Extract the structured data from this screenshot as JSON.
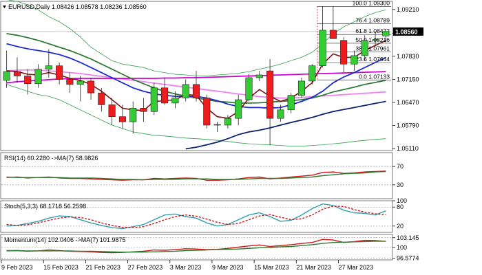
{
  "chart_data": [
    {
      "type": "candlestick",
      "title": "EURUSD,Daily",
      "ohlc_text": "1.08426 1.08578 1.08236 1.08560",
      "last_price": "1.08560",
      "y_ticks": [
        1.0511,
        1.0579,
        1.0647,
        1.0715,
        1.0783,
        1.0851,
        1.0921
      ],
      "y_tick_labels": [
        "1.05110",
        "1.05790",
        "1.06470",
        "1.07150",
        "1.07830",
        "",
        "1.09210"
      ],
      "ylim": [
        1.0505,
        1.0945
      ],
      "x_labels": [
        "9 Feb 2023",
        "15 Feb 2023",
        "21 Feb 2023",
        "27 Feb 2023",
        "3 Mar 2023",
        "9 Mar 2023",
        "15 Mar 2023",
        "21 Mar 2023",
        "27 Mar 2023"
      ],
      "x_label_bars": [
        0,
        4,
        8,
        12,
        16,
        20,
        24,
        28,
        32
      ],
      "candles": [
        {
          "o": 1.0712,
          "h": 1.08,
          "l": 1.069,
          "c": 1.0738
        },
        {
          "o": 1.0738,
          "h": 1.078,
          "l": 1.0705,
          "c": 1.0725
        },
        {
          "o": 1.0725,
          "h": 1.0745,
          "l": 1.067,
          "c": 1.0702
        },
        {
          "o": 1.0702,
          "h": 1.076,
          "l": 1.069,
          "c": 1.0745
        },
        {
          "o": 1.0745,
          "h": 1.0804,
          "l": 1.072,
          "c": 1.0755
        },
        {
          "o": 1.0755,
          "h": 1.0765,
          "l": 1.07,
          "c": 1.0715
        },
        {
          "o": 1.0715,
          "h": 1.0735,
          "l": 1.0675,
          "c": 1.07
        },
        {
          "o": 1.07,
          "h": 1.0725,
          "l": 1.065,
          "c": 1.071
        },
        {
          "o": 1.071,
          "h": 1.072,
          "l": 1.0655,
          "c": 1.0675
        },
        {
          "o": 1.0675,
          "h": 1.069,
          "l": 1.062,
          "c": 1.064
        },
        {
          "o": 1.064,
          "h": 1.066,
          "l": 1.058,
          "c": 1.0605
        },
        {
          "o": 1.0605,
          "h": 1.064,
          "l": 1.057,
          "c": 1.059
        },
        {
          "o": 1.059,
          "h": 1.065,
          "l": 1.0555,
          "c": 1.063
        },
        {
          "o": 1.063,
          "h": 1.066,
          "l": 1.059,
          "c": 1.062
        },
        {
          "o": 1.062,
          "h": 1.0705,
          "l": 1.061,
          "c": 1.069
        },
        {
          "o": 1.069,
          "h": 1.072,
          "l": 1.064,
          "c": 1.0645
        },
        {
          "o": 1.0645,
          "h": 1.068,
          "l": 1.063,
          "c": 1.066
        },
        {
          "o": 1.066,
          "h": 1.0715,
          "l": 1.065,
          "c": 1.07
        },
        {
          "o": 1.07,
          "h": 1.074,
          "l": 1.065,
          "c": 1.066
        },
        {
          "o": 1.066,
          "h": 1.067,
          "l": 1.057,
          "c": 1.058
        },
        {
          "o": 1.058,
          "h": 1.059,
          "l": 1.056,
          "c": 1.0582
        },
        {
          "o": 1.058,
          "h": 1.061,
          "l": 1.057,
          "c": 1.06
        },
        {
          "o": 1.06,
          "h": 1.067,
          "l": 1.058,
          "c": 1.0655
        },
        {
          "o": 1.0655,
          "h": 1.073,
          "l": 1.065,
          "c": 1.072
        },
        {
          "o": 1.072,
          "h": 1.074,
          "l": 1.071,
          "c": 1.0728
        },
        {
          "o": 1.074,
          "h": 1.0775,
          "l": 1.052,
          "c": 1.06
        },
        {
          "o": 1.06,
          "h": 1.064,
          "l": 1.059,
          "c": 1.0625
        },
        {
          "o": 1.0625,
          "h": 1.0675,
          "l": 1.0615,
          "c": 1.0668
        },
        {
          "o": 1.0668,
          "h": 1.072,
          "l": 1.066,
          "c": 1.071
        },
        {
          "o": 1.071,
          "h": 1.076,
          "l": 1.07,
          "c": 1.0755
        },
        {
          "o": 1.0755,
          "h": 1.093,
          "l": 1.075,
          "c": 1.086
        },
        {
          "o": 1.086,
          "h": 1.093,
          "l": 1.0835,
          "c": 1.0835
        },
        {
          "o": 1.083,
          "h": 1.084,
          "l": 1.0735,
          "c": 1.076
        },
        {
          "o": 1.076,
          "h": 1.08,
          "l": 1.074,
          "c": 1.0785
        },
        {
          "o": 1.0785,
          "h": 1.0845,
          "l": 1.077,
          "c": 1.083
        },
        {
          "o": 1.083,
          "h": 1.0855,
          "l": 1.0815,
          "c": 1.0832
        },
        {
          "o": 1.0843,
          "h": 1.0858,
          "l": 1.0824,
          "c": 1.0856
        }
      ],
      "overlays": [
        {
          "name": "bb-upper",
          "color": "#2e9e4a",
          "width": 0.8,
          "values": [
            1.095,
            1.0945,
            1.0935,
            1.092,
            1.09,
            1.0885,
            1.0865,
            1.084,
            1.081,
            1.079,
            1.077,
            1.076,
            1.0755,
            1.075,
            1.074,
            1.0735,
            1.073,
            1.0728,
            1.0725,
            1.0725,
            1.0728,
            1.073,
            1.0733,
            1.0738,
            1.0745,
            1.0752,
            1.076,
            1.077,
            1.078,
            1.0795,
            1.082,
            1.085,
            1.087,
            1.0885,
            1.09,
            1.0912,
            1.092
          ]
        },
        {
          "name": "bb-lower",
          "color": "#2e9e4a",
          "width": 0.8,
          "values": [
            1.07,
            1.069,
            1.068,
            1.067,
            1.0665,
            1.0655,
            1.064,
            1.0625,
            1.061,
            1.0595,
            1.058,
            1.057,
            1.056,
            1.0555,
            1.055,
            1.0548,
            1.0545,
            1.0542,
            1.054,
            1.0538,
            1.0535,
            1.0532,
            1.0528,
            1.0525,
            1.0523,
            1.0522,
            1.052,
            1.0518,
            1.0518,
            1.052,
            1.0522,
            1.0525,
            1.0528,
            1.0532,
            1.0535,
            1.0538,
            1.054
          ]
        },
        {
          "name": "sma-slow",
          "color": "#ee82ee",
          "width": 1.8,
          "values": [
            1.074,
            1.0742,
            1.0743,
            1.0742,
            1.074,
            1.0738,
            1.0735,
            1.0732,
            1.0728,
            1.0724,
            1.072,
            1.0716,
            1.0712,
            1.0708,
            1.0704,
            1.07,
            1.0696,
            1.0692,
            1.0688,
            1.0684,
            1.068,
            1.0676,
            1.0672,
            1.0668,
            1.0664,
            1.0662,
            1.066,
            1.066,
            1.0662,
            1.0664,
            1.0666,
            1.0668,
            1.067,
            1.0672,
            1.0674,
            1.0676,
            1.0678
          ]
        },
        {
          "name": "sma-magenta",
          "color": "#cc00cc",
          "width": 1.8,
          "values": [
            1.0705,
            1.0708,
            1.071,
            1.0712,
            1.0714,
            1.0716,
            1.0717,
            1.0718,
            1.0718,
            1.0718,
            1.0718,
            1.0718,
            1.0718,
            1.0718,
            1.0718,
            1.0719,
            1.0719,
            1.072,
            1.072,
            1.0721,
            1.0722,
            1.0723,
            1.0724,
            1.0725,
            1.0726,
            1.0727,
            1.0728,
            1.0729,
            1.073,
            1.0731,
            1.0732,
            1.0733,
            1.0734,
            1.0735,
            1.0736,
            1.0737,
            1.0738
          ]
        },
        {
          "name": "sma-green",
          "color": "#2f7a32",
          "width": 1.8,
          "values": [
            1.085,
            1.0845,
            1.0838,
            1.083,
            1.082,
            1.081,
            1.08,
            1.0788,
            1.0775,
            1.076,
            1.0745,
            1.073,
            1.0715,
            1.0702,
            1.069,
            1.068,
            1.0672,
            1.0666,
            1.066,
            1.0655,
            1.065,
            1.0648,
            1.0645,
            1.0645,
            1.0646,
            1.0648,
            1.065,
            1.0652,
            1.0655,
            1.066,
            1.0668,
            1.0678,
            1.0685,
            1.0692,
            1.07,
            1.0706,
            1.0712
          ]
        },
        {
          "name": "sma-blue-fast",
          "color": "#1a2ad0",
          "width": 1.8,
          "values": [
            1.082,
            1.0812,
            1.0805,
            1.08,
            1.0795,
            1.0788,
            1.0778,
            1.0765,
            1.075,
            1.0735,
            1.072,
            1.0705,
            1.069,
            1.068,
            1.0672,
            1.0668,
            1.0665,
            1.0665,
            1.0665,
            1.066,
            1.0652,
            1.0642,
            1.0635,
            1.0632,
            1.0632,
            1.063,
            1.0632,
            1.064,
            1.065,
            1.0662,
            1.068,
            1.0705,
            1.0722,
            1.0735,
            1.075,
            1.0765,
            1.078
          ]
        },
        {
          "name": "sma-navy",
          "color": "#0b1f6e",
          "width": 1.8,
          "values": [
            null,
            null,
            null,
            null,
            null,
            null,
            null,
            null,
            null,
            null,
            null,
            null,
            null,
            null,
            null,
            null,
            null,
            1.051,
            1.0515,
            1.0522,
            1.053,
            1.054,
            1.0552,
            1.056,
            1.0565,
            1.0572,
            1.058,
            1.0588,
            1.0595,
            1.0603,
            1.0612,
            1.062,
            1.0626,
            1.0632,
            1.0638,
            1.0644,
            1.065
          ]
        },
        {
          "name": "ema-brown",
          "color": "#7a1010",
          "width": 1.6,
          "values": [
            1.074,
            1.0738,
            1.073,
            1.0728,
            1.0735,
            1.0728,
            1.0718,
            1.0712,
            1.07,
            1.068,
            1.0655,
            1.063,
            1.0625,
            1.0623,
            1.065,
            1.0652,
            1.0655,
            1.067,
            1.0668,
            1.063,
            1.0605,
            1.06,
            1.062,
            1.066,
            1.0685,
            1.0665,
            1.065,
            1.066,
            1.068,
            1.0705,
            1.076,
            1.079,
            1.078,
            1.078,
            1.08,
            1.0815,
            1.083
          ]
        }
      ],
      "fibonacci": {
        "levels": [
          {
            "ratio": "100.0",
            "price": 1.093,
            "text": "100.0 1.09300"
          },
          {
            "ratio": "76.4",
            "price": 1.08789,
            "text": "76.4 1.08789"
          },
          {
            "ratio": "61.8",
            "price": 1.08472,
            "text": "61.8 1.08472"
          },
          {
            "ratio": "50.0",
            "price": 1.08216,
            "text": "50.0 1.08216"
          },
          {
            "ratio": "38.2",
            "price": 1.07961,
            "text": "38.2 1.07961"
          },
          {
            "ratio": "23.6",
            "price": 1.07644,
            "text": "23.6 1.07644"
          },
          {
            "ratio": "0.0",
            "price": 1.07133,
            "text": "0.0 1.07133"
          }
        ],
        "from_bar": 30
      }
    },
    {
      "type": "line",
      "title": "RSI(14) 60.2280  ->MA(7) 58.9826",
      "ylim": [
        0,
        100
      ],
      "y_ticks": [
        70,
        30
      ],
      "levels": [
        70,
        30
      ],
      "series": [
        {
          "name": "",
          "color": "#d21515",
          "values": [
            46,
            47,
            45,
            46,
            47,
            45,
            44,
            44,
            43,
            42,
            41,
            40,
            41,
            41,
            44,
            43,
            44,
            45,
            44,
            40,
            40,
            41,
            43,
            46,
            47,
            43,
            45,
            47,
            49,
            51,
            57,
            58,
            55,
            56,
            58,
            59,
            60
          ]
        },
        {
          "name": "",
          "color": "#2f7a32",
          "values": [
            47,
            46,
            46,
            46,
            46,
            46,
            45,
            45,
            45,
            44,
            43,
            42,
            42,
            41,
            42,
            42,
            42,
            43,
            43,
            43,
            42,
            42,
            42,
            43,
            44,
            44,
            44,
            45,
            46,
            47,
            50,
            52,
            54,
            55,
            56,
            58,
            59
          ]
        }
      ]
    },
    {
      "type": "line",
      "title": "Stoch(5,3,3) 68.1718 56.2598",
      "ylim": [
        0,
        100
      ],
      "y_tick_labels": [
        "100",
        "80",
        "20"
      ],
      "y_ticks": [
        100,
        80,
        20
      ],
      "series": [
        {
          "name": "",
          "color": "#2e9eb0",
          "values": [
            20,
            22,
            28,
            35,
            45,
            52,
            50,
            40,
            30,
            22,
            15,
            12,
            18,
            25,
            40,
            55,
            58,
            50,
            45,
            30,
            20,
            25,
            40,
            55,
            62,
            50,
            35,
            38,
            55,
            75,
            90,
            85,
            70,
            62,
            60,
            55,
            68
          ]
        },
        {
          "name": "",
          "color": "#d21515",
          "dash": true,
          "values": [
            25,
            22,
            24,
            30,
            38,
            45,
            49,
            47,
            40,
            30,
            22,
            16,
            15,
            18,
            28,
            40,
            50,
            55,
            51,
            42,
            32,
            25,
            28,
            40,
            52,
            56,
            48,
            40,
            43,
            55,
            73,
            83,
            82,
            72,
            64,
            59,
            56
          ]
        }
      ]
    },
    {
      "type": "line",
      "title": "Momentum(14) 102.0406  ->MA(7) 101.9875",
      "ylim": [
        96.0,
        104.2
      ],
      "y_ticks": [
        103.145,
        100,
        96.5774
      ],
      "y_tick_labels": [
        "103.145",
        "100",
        "96.5774"
      ],
      "series": [
        {
          "name": "",
          "color": "#d21515",
          "values": [
            98.9,
            99.0,
            98.8,
            98.9,
            99.2,
            99.0,
            98.8,
            98.7,
            98.6,
            98.4,
            98.3,
            98.4,
            98.6,
            98.8,
            99.2,
            99.1,
            99.3,
            99.6,
            99.5,
            99.3,
            99.4,
            99.7,
            100.1,
            100.5,
            100.8,
            100.3,
            100.6,
            100.9,
            101.3,
            101.6,
            102.6,
            102.4,
            101.6,
            101.9,
            102.3,
            102.2,
            102.0
          ]
        },
        {
          "name": "",
          "color": "#2f7a32",
          "values": [
            99.0,
            99.0,
            98.9,
            98.9,
            98.9,
            98.9,
            98.9,
            98.8,
            98.8,
            98.7,
            98.6,
            98.5,
            98.5,
            98.5,
            98.6,
            98.7,
            98.8,
            99.0,
            99.1,
            99.2,
            99.3,
            99.4,
            99.5,
            99.7,
            99.9,
            100.0,
            100.2,
            100.3,
            100.6,
            100.9,
            101.3,
            101.6,
            101.7,
            101.8,
            101.9,
            102.0,
            102.0
          ]
        }
      ]
    }
  ]
}
